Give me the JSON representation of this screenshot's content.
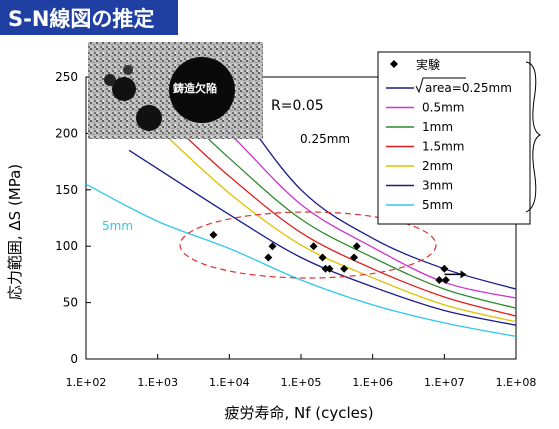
{
  "banner": {
    "title": "S-N線図の推定",
    "bg_color": "#1f3fa3"
  },
  "photo": {
    "label": "鋳造欠陥"
  },
  "annotations": {
    "ratio": "R=0.05",
    "curve_025": "0.25mm",
    "curve_5": "5mm"
  },
  "chart_data": {
    "type": "line",
    "x_scale": "log",
    "xlim": [
      100,
      100000000
    ],
    "ylim": [
      0,
      250
    ],
    "xticks": [
      "1.E+02",
      "1.E+03",
      "1.E+04",
      "1.E+05",
      "1.E+06",
      "1.E+07",
      "1.E+08"
    ],
    "yticks": [
      "0",
      "50",
      "100",
      "150",
      "200",
      "250"
    ],
    "ylabel": "応力範囲, ΔS (MPa)",
    "xlabel": "疲労寿命, Nf (cycles)",
    "legend_title": "実験",
    "legend_position": "top-right",
    "series": [
      {
        "name": "area=0.25mm",
        "color": "#1a1a8c",
        "points": [
          [
            3000,
            270
          ],
          [
            10000,
            232
          ],
          [
            100000,
            150
          ],
          [
            1000000,
            107
          ],
          [
            10000000,
            80
          ],
          [
            100000000,
            62
          ]
        ]
      },
      {
        "name": "0.5mm",
        "color": "#cc33cc",
        "points": [
          [
            3500,
            220
          ],
          [
            10000,
            200
          ],
          [
            100000,
            137
          ],
          [
            1000000,
            99
          ],
          [
            10000000,
            68
          ],
          [
            100000000,
            54
          ]
        ]
      },
      {
        "name": "1mm",
        "color": "#2e8b2e",
        "points": [
          [
            2000,
            220
          ],
          [
            10000,
            178
          ],
          [
            100000,
            124
          ],
          [
            1000000,
            90
          ],
          [
            10000000,
            62
          ],
          [
            100000000,
            45
          ]
        ]
      },
      {
        "name": "1.5mm",
        "color": "#e02020",
        "points": [
          [
            1500,
            210
          ],
          [
            10000,
            162
          ],
          [
            100000,
            112
          ],
          [
            1000000,
            80
          ],
          [
            10000000,
            55
          ],
          [
            100000000,
            38
          ]
        ]
      },
      {
        "name": "2mm",
        "color": "#e0c000",
        "points": [
          [
            1000,
            205
          ],
          [
            10000,
            147
          ],
          [
            100000,
            101
          ],
          [
            1000000,
            72
          ],
          [
            10000000,
            48
          ],
          [
            100000000,
            33
          ]
        ]
      },
      {
        "name": "3mm",
        "color": "#1a1a8c",
        "points": [
          [
            400,
            185
          ],
          [
            10000,
            128
          ],
          [
            100000,
            90
          ],
          [
            1000000,
            64
          ],
          [
            10000000,
            43
          ],
          [
            100000000,
            30
          ]
        ]
      },
      {
        "name": "5mm",
        "color": "#30c8e8",
        "points": [
          [
            100,
            155
          ],
          [
            1000,
            122
          ],
          [
            10000,
            98
          ],
          [
            100000,
            70
          ],
          [
            1000000,
            48
          ],
          [
            10000000,
            32
          ],
          [
            100000000,
            20
          ]
        ]
      }
    ],
    "experiment": {
      "points": [
        [
          6000,
          110
        ],
        [
          40000,
          100
        ],
        [
          35000,
          90
        ],
        [
          150000,
          100
        ],
        [
          200000,
          90
        ],
        [
          220000,
          80
        ],
        [
          250000,
          80
        ],
        [
          400000,
          80
        ],
        [
          600000,
          100
        ],
        [
          550000,
          90
        ],
        [
          10000000,
          80
        ],
        [
          8500000,
          70
        ],
        [
          10500000,
          70
        ]
      ],
      "runout": [
        [
          13000000,
          75
        ]
      ]
    }
  }
}
